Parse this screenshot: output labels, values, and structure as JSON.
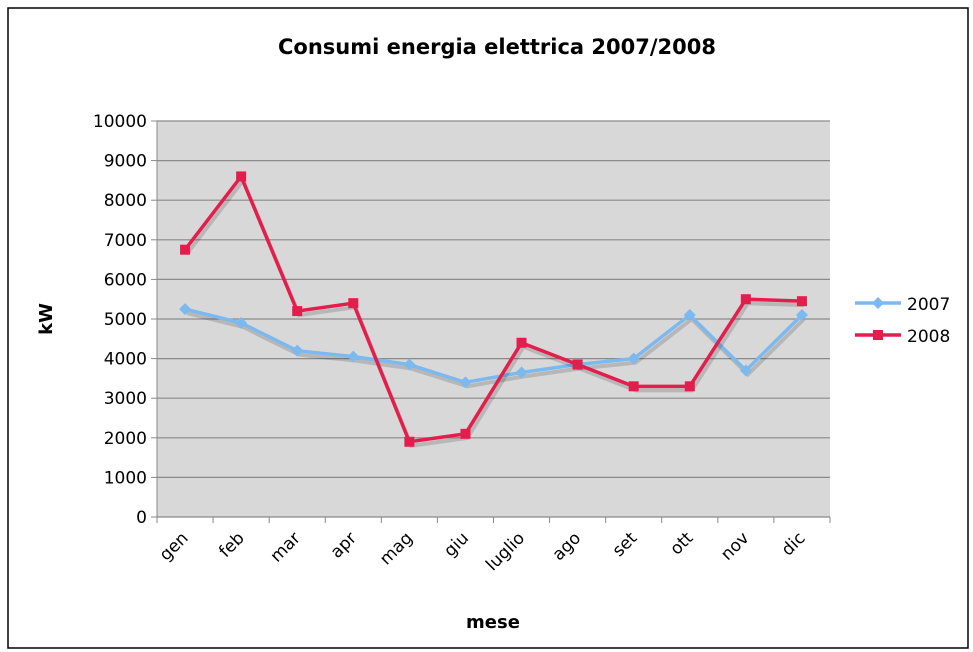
{
  "chart_data": {
    "type": "line",
    "title": "Consumi energia elettrica 2007/2008",
    "x_label": "mese",
    "y_label": "kW",
    "categories": [
      "gen",
      "feb",
      "mar",
      "apr",
      "mag",
      "giu",
      "luglio",
      "ago",
      "set",
      "ott",
      "nov",
      "dic"
    ],
    "series": [
      {
        "name": "2007",
        "color": "#7cb9ef",
        "marker": "diamond",
        "values": [
          5250,
          4900,
          4200,
          4050,
          3850,
          3400,
          3650,
          3850,
          4000,
          5100,
          3700,
          5100
        ]
      },
      {
        "name": "2008",
        "color": "#e41e4c",
        "marker": "square",
        "values": [
          6750,
          8600,
          5200,
          5400,
          1900,
          2100,
          4400,
          3850,
          3300,
          3300,
          5500,
          5450
        ]
      }
    ],
    "ylim": [
      0,
      10000
    ],
    "yticks": [
      0,
      1000,
      2000,
      3000,
      4000,
      5000,
      6000,
      7000,
      8000,
      9000,
      10000
    ],
    "grid": true,
    "legend": "right"
  }
}
